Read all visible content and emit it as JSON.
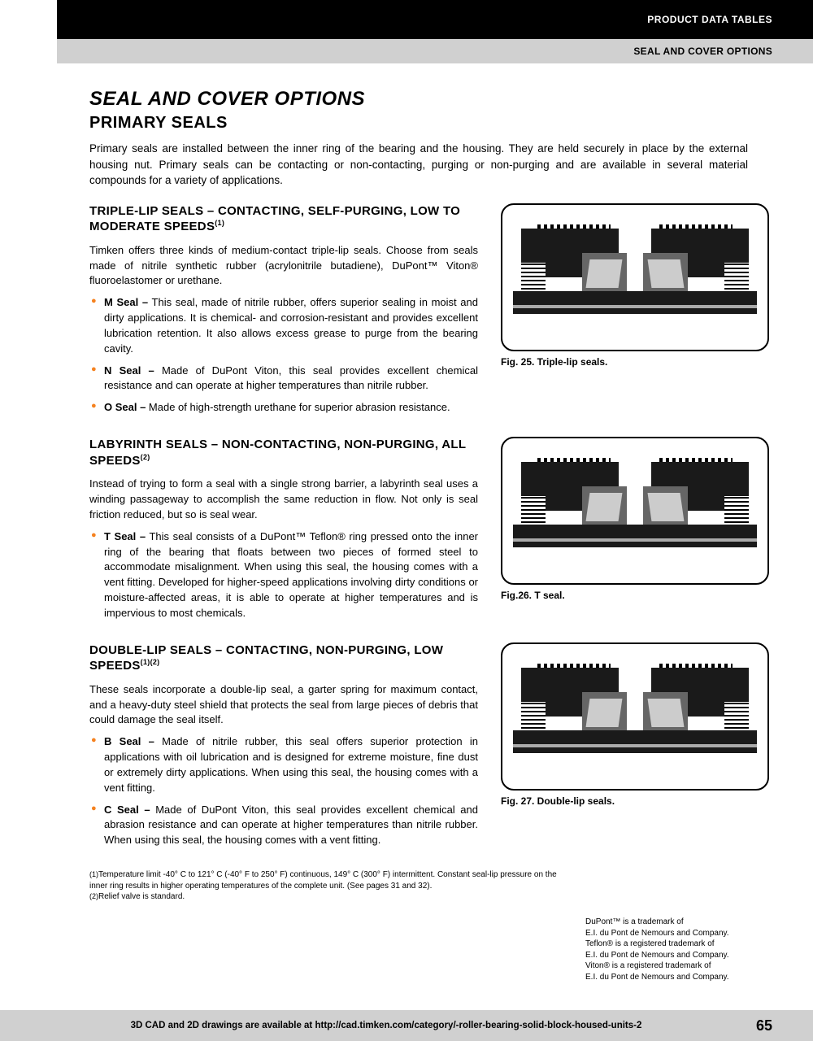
{
  "header": {
    "black_bar": "PRODUCT DATA TABLES",
    "gray_bar": "SEAL AND COVER OPTIONS"
  },
  "main": {
    "title": "SEAL AND COVER OPTIONS",
    "subtitle": "PRIMARY SEALS",
    "intro": "Primary seals are installed between the inner ring of the bearing and the housing. They are held securely in place by the external housing nut. Primary seals can be contacting or non-contacting, purging or non-purging and are available in several material compounds for a variety of applications."
  },
  "sections": [
    {
      "heading": "TRIPLE-LIP SEALS – CONTACTING, SELF-PURGING, LOW TO MODERATE SPEEDS",
      "sup": "(1)",
      "desc": "Timken offers three kinds of medium-contact triple-lip seals. Choose from seals made of nitrile synthetic rubber (acrylonitrile butadiene), DuPont™ Viton® fluoroelastomer or urethane.",
      "items": [
        {
          "b": "M Seal –",
          "t": " This seal, made of nitrile rubber, offers superior sealing in moist and dirty applications. It is chemical- and corrosion-resistant and provides excellent lubrication retention. It also allows excess grease to purge from the bearing cavity."
        },
        {
          "b": "N Seal –",
          "t": " Made of DuPont Viton, this seal provides excellent chemical resistance and can operate at higher temperatures than nitrile rubber."
        },
        {
          "b": "O Seal –",
          "t": " Made of high-strength urethane for superior abrasion resistance."
        }
      ],
      "fig_caption": "Fig. 25. Triple-lip seals."
    },
    {
      "heading": "LABYRINTH SEALS – NON-CONTACTING, NON-PURGING, ALL SPEEDS",
      "sup": "(2)",
      "desc": "Instead of trying to form a seal with a single strong barrier, a labyrinth seal uses a winding passageway to accomplish the same reduction in flow. Not only is seal friction reduced, but so is seal wear.",
      "items": [
        {
          "b": "T Seal –",
          "t": " This seal consists of a DuPont™ Teflon® ring pressed onto the inner ring of the bearing that floats between two pieces of formed steel to accommodate misalignment. When using this seal, the housing comes with a vent fitting. Developed for higher-speed applications involving dirty conditions or moisture-affected areas, it is able to operate at higher temperatures and is impervious to most chemicals."
        }
      ],
      "fig_caption": "Fig.26. T seal."
    },
    {
      "heading": "DOUBLE-LIP SEALS – CONTACTING, NON-PURGING, LOW SPEEDS",
      "sup": "(1)(2)",
      "desc": "These seals incorporate a double-lip seal, a garter spring for maximum contact, and a heavy-duty steel shield that protects the seal from large pieces of debris that could damage the seal itself.",
      "items": [
        {
          "b": "B Seal –",
          "t": " Made of nitrile rubber, this seal offers superior protection in applications with oil lubrication and is designed for extreme moisture, fine dust or extremely dirty applications. When using this seal, the housing comes with a vent fitting."
        },
        {
          "b": "C Seal –",
          "t": " Made of DuPont Viton, this seal provides excellent chemical and abrasion resistance and can operate at higher temperatures than nitrile rubber. When using this seal, the housing comes with a vent fitting."
        }
      ],
      "fig_caption": "Fig. 27. Double-lip seals."
    }
  ],
  "footnotes": {
    "n1": "Temperature limit -40° C to 121° C (-40° F to 250° F) continuous, 149° C (300° F) intermittent. Constant seal-lip pressure on the inner ring results in higher operating temperatures of the complete unit. (See pages 31 and 32).",
    "n2": "Relief valve is standard."
  },
  "trademark": "DuPont™ is a trademark of\nE.I. du Pont de Nemours and Company.\nTeflon® is a registered trademark of\nE.I. du Pont de Nemours and Company.\nViton® is a registered trademark of\nE.I. du Pont de Nemours and Company.",
  "footer": {
    "text": "3D CAD and 2D drawings are available at http://cad.timken.com/category/-roller-bearing-solid-block-housed-units-2",
    "page": "65"
  },
  "colors": {
    "bullet": "#f58220",
    "black": "#000000",
    "gray_bar": "#d0d0d0"
  }
}
